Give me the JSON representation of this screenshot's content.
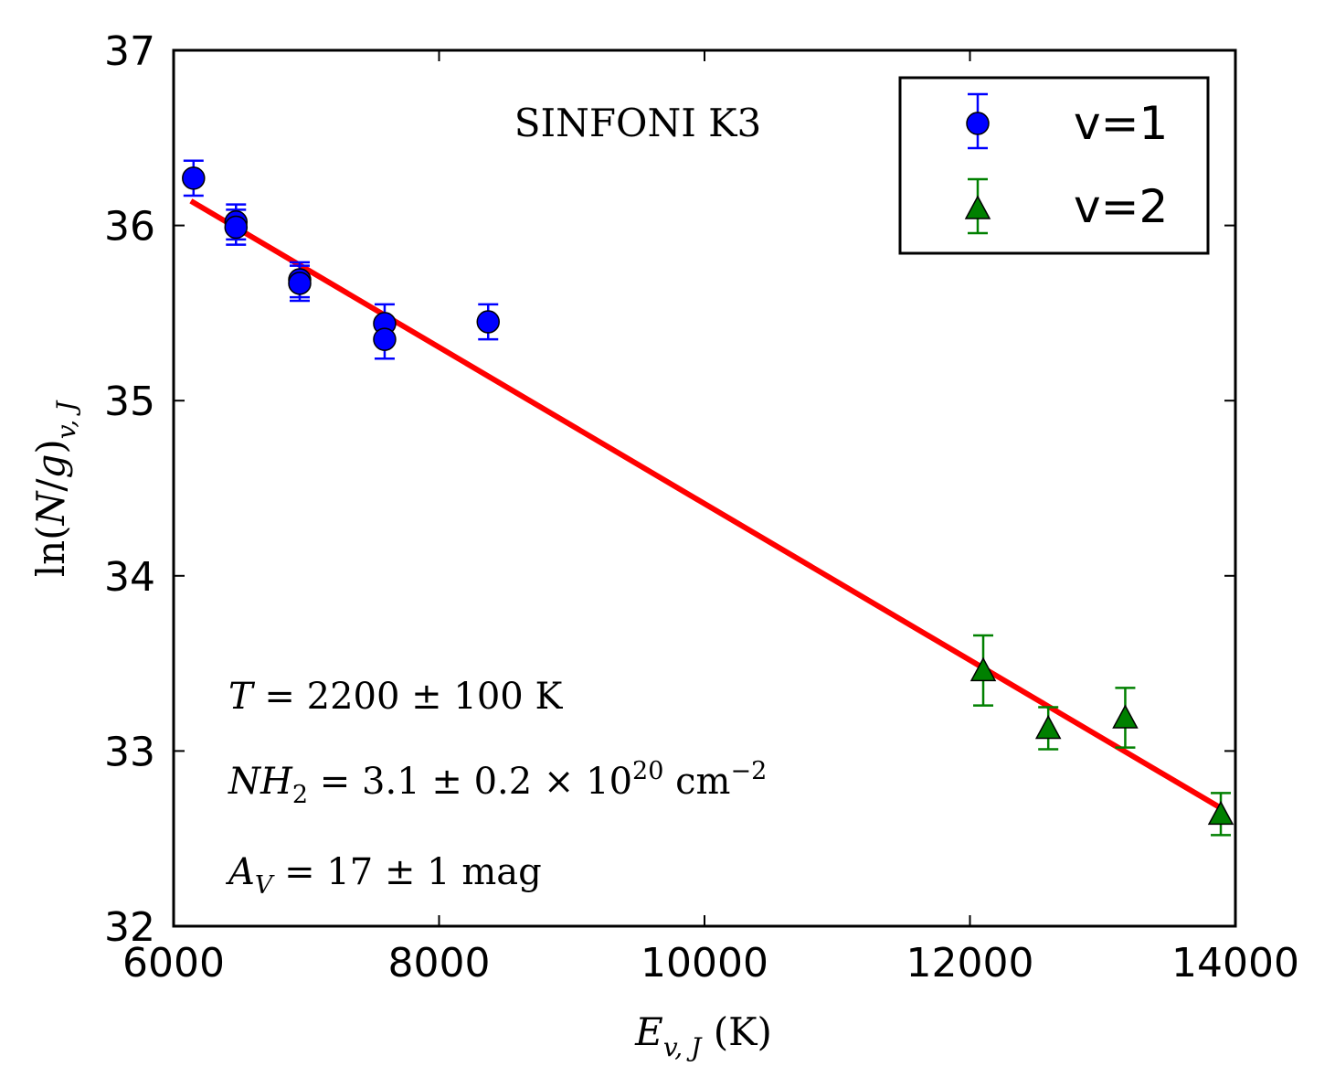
{
  "chart_data": {
    "type": "scatter",
    "title": "SINFONI K3",
    "xlabel": "E_{v,J} (K)",
    "ylabel": "ln(N/g)_{v,J}",
    "xlim": [
      6000,
      14000
    ],
    "ylim": [
      32,
      37
    ],
    "x_ticks": [
      6000,
      8000,
      10000,
      12000,
      14000
    ],
    "y_ticks": [
      32,
      33,
      34,
      35,
      36,
      37
    ],
    "x_tick_labels": [
      "6000",
      "8000",
      "10000",
      "12000",
      "14000"
    ],
    "y_tick_labels": [
      "32",
      "33",
      "34",
      "35",
      "36",
      "37"
    ],
    "grid": false,
    "legend_position": "top-right",
    "series": [
      {
        "name": "v=1",
        "marker": "circle",
        "color": "#0000ff",
        "errorbar_color": "#0000ff",
        "points": [
          {
            "x": 6150,
            "y": 36.27,
            "err": 0.1
          },
          {
            "x": 6470,
            "y": 36.02,
            "err": 0.1
          },
          {
            "x": 6470,
            "y": 35.99,
            "err": 0.1
          },
          {
            "x": 6950,
            "y": 35.69,
            "err": 0.1
          },
          {
            "x": 6950,
            "y": 35.67,
            "err": 0.1
          },
          {
            "x": 7590,
            "y": 35.44,
            "err": 0.11
          },
          {
            "x": 7590,
            "y": 35.35,
            "err": 0.11
          },
          {
            "x": 8370,
            "y": 35.45,
            "err": 0.1
          }
        ]
      },
      {
        "name": "v=2",
        "marker": "triangle",
        "color": "#008000",
        "errorbar_color": "#008000",
        "points": [
          {
            "x": 12100,
            "y": 33.46,
            "err": 0.2
          },
          {
            "x": 12590,
            "y": 33.13,
            "err": 0.12
          },
          {
            "x": 13170,
            "y": 33.19,
            "err": 0.17
          },
          {
            "x": 13890,
            "y": 32.64,
            "err": 0.12
          }
        ]
      }
    ],
    "fit_line": {
      "color": "#ff0000",
      "x": [
        6130,
        13900
      ],
      "y": [
        36.14,
        32.67
      ]
    },
    "annotations": {
      "temperature": "T = 2200 ± 100 K",
      "column_density": "NH2 = 3.1 ± 0.2 × 10^20 cm^-2",
      "extinction": "A_V = 17 ± 1 mag"
    }
  }
}
